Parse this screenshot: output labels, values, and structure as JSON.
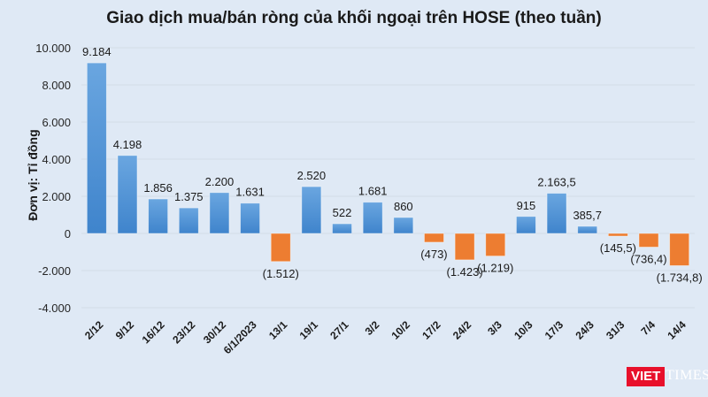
{
  "chart_data": {
    "type": "bar",
    "title": "Giao dịch mua/bán ròng của khối ngoại trên HOSE (theo tuần)",
    "xlabel": "",
    "ylabel": "Đơn vị: Tỉ đồng",
    "ylim": [
      -4000,
      10000
    ],
    "yticks": [
      10000,
      8000,
      6000,
      4000,
      2000,
      0,
      -2000,
      -4000
    ],
    "ytick_labels": [
      "10.000",
      "8.000",
      "6.000",
      "4.000",
      "2.000",
      "0",
      "-2.000",
      "-4.000"
    ],
    "grid": true,
    "legend": null,
    "categories": [
      "2/12",
      "9/12",
      "16/12",
      "23/12",
      "30/12",
      "6/1/2023",
      "13/1",
      "19/1",
      "27/1",
      "3/2",
      "10/2",
      "17/2",
      "24/2",
      "3/3",
      "10/3",
      "17/3",
      "24/3",
      "31/3",
      "7/4",
      "14/4"
    ],
    "values": [
      9184,
      4198,
      1856,
      1375,
      2200,
      1631,
      -1512,
      2520,
      522,
      1681,
      860,
      -473,
      -1423,
      -1219,
      915,
      2163.5,
      385.7,
      -145.5,
      -736.4,
      -1734.8
    ],
    "data_labels": [
      "9.184",
      "4.198",
      "1.856",
      "1.375",
      "2.200",
      "1.631",
      "(1.512)",
      "2.520",
      "522",
      "1.681",
      "860",
      "(473)",
      "(1.423)",
      "(1.219)",
      "915",
      "2.163,5",
      "385,7",
      "(145,5)",
      "(736,4)",
      "(1.734,8)"
    ],
    "colors": {
      "positive": "#4a8fd4",
      "negative": "#ed7d31",
      "background": "#dfe9f5",
      "grid": "#d3dde8"
    }
  },
  "watermark": {
    "brand_red": "VIET",
    "brand_rest": "TIMES",
    "red_color": "#e8102b"
  }
}
